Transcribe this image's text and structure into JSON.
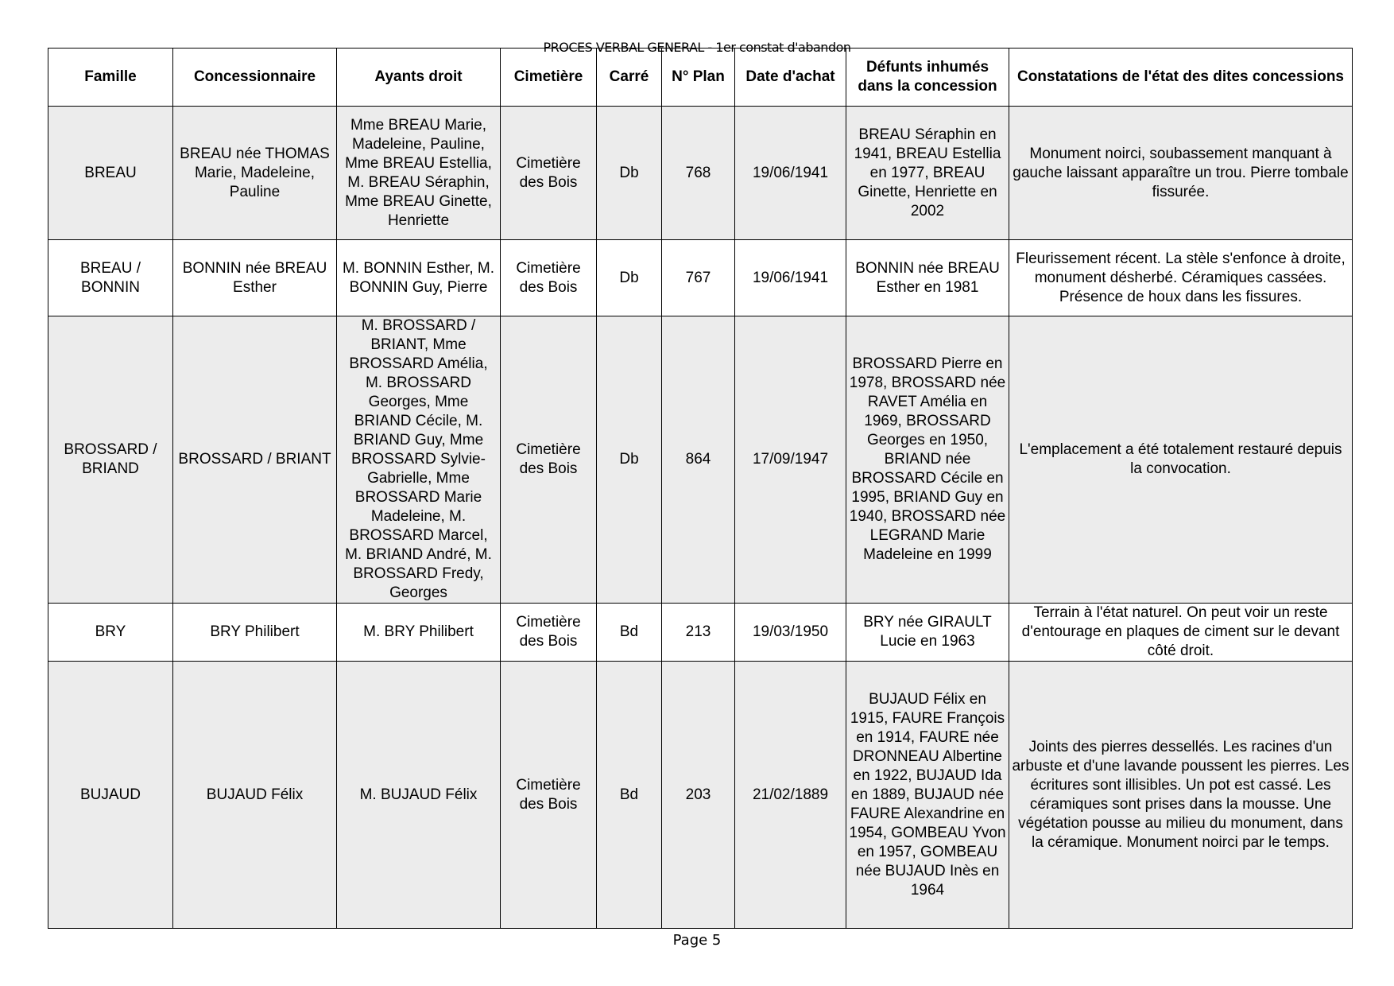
{
  "title": "PROCES VERBAL GENERAL - 1er constat d'abandon",
  "columns": [
    "Famille",
    "Concessionnaire",
    "Ayants droit",
    "Cimetière",
    "Carré",
    "N° Plan",
    "Date d'achat",
    "Défunts inhumés dans la concession",
    "Constatations de l'état des dites concessions"
  ],
  "rows": [
    {
      "famille": "BREAU",
      "concessionnaire": "BREAU née THOMAS Marie, Madeleine, Pauline",
      "ayants": "Mme BREAU Marie, Madeleine, Pauline, Mme BREAU Estellia, M. BREAU Séraphin, Mme BREAU Ginette, Henriette",
      "cimetiere": "Cimetière des Bois",
      "carre": "Db",
      "plan": "768",
      "date": "19/06/1941",
      "defunts": "BREAU Séraphin en 1941, BREAU Estellia en 1977, BREAU Ginette, Henriette en 2002",
      "constat": "Monument noirci, soubassement manquant à gauche laissant apparaître un trou. Pierre tombale fissurée."
    },
    {
      "famille": "BREAU / BONNIN",
      "concessionnaire": "BONNIN née BREAU Esther",
      "ayants": "M. BONNIN Esther, M. BONNIN Guy, Pierre",
      "cimetiere": "Cimetière des Bois",
      "carre": "Db",
      "plan": "767",
      "date": "19/06/1941",
      "defunts": "BONNIN née BREAU Esther en 1981",
      "constat": "Fleurissement récent. La stèle s'enfonce à droite, monument désherbé. Céramiques cassées. Présence de houx dans les fissures."
    },
    {
      "famille": "BROSSARD / BRIAND",
      "concessionnaire": "BROSSARD / BRIANT",
      "ayants": "M. BROSSARD / BRIANT, Mme BROSSARD Amélia, M. BROSSARD Georges, Mme BRIAND Cécile, M. BRIAND Guy, Mme BROSSARD Sylvie-Gabrielle, Mme BROSSARD Marie Madeleine, M. BROSSARD Marcel, M. BRIAND André, M. BROSSARD Fredy, Georges",
      "cimetiere": "Cimetière des Bois",
      "carre": "Db",
      "plan": "864",
      "date": "17/09/1947",
      "defunts": "BROSSARD Pierre en 1978, BROSSARD née RAVET Amélia en 1969, BROSSARD Georges en 1950, BRIAND née BROSSARD Cécile en 1995, BRIAND Guy en 1940, BROSSARD née LEGRAND Marie Madeleine en 1999",
      "constat": "L'emplacement a été totalement restauré depuis la convocation."
    },
    {
      "famille": "BRY",
      "concessionnaire": "BRY Philibert",
      "ayants": "M. BRY Philibert",
      "cimetiere": "Cimetière des Bois",
      "carre": "Bd",
      "plan": "213",
      "date": "19/03/1950",
      "defunts": "BRY née GIRAULT Lucie en 1963",
      "constat": "Terrain à l'état naturel. On peut voir un reste d'entourage en plaques de ciment sur le devant côté droit."
    },
    {
      "famille": "BUJAUD",
      "concessionnaire": "BUJAUD Félix",
      "ayants": "M. BUJAUD Félix",
      "cimetiere": "Cimetière des Bois",
      "carre": "Bd",
      "plan": "203",
      "date": "21/02/1889",
      "defunts": "BUJAUD Félix en 1915, FAURE François en 1914, FAURE née DRONNEAU Albertine en 1922, BUJAUD Ida en 1889, BUJAUD née FAURE Alexandrine en 1954, GOMBEAU Yvon en 1957, GOMBEAU née BUJAUD Inès en 1964",
      "constat": "Joints des pierres dessellés. Les racines d'un arbuste et d'une lavande poussent les pierres. Les écritures sont illisibles. Un pot est cassé. Les céramiques sont prises dans la mousse. Une végétation pousse au milieu du monument, dans la céramique. Monument noirci par le temps."
    }
  ],
  "footer": "Page 5"
}
